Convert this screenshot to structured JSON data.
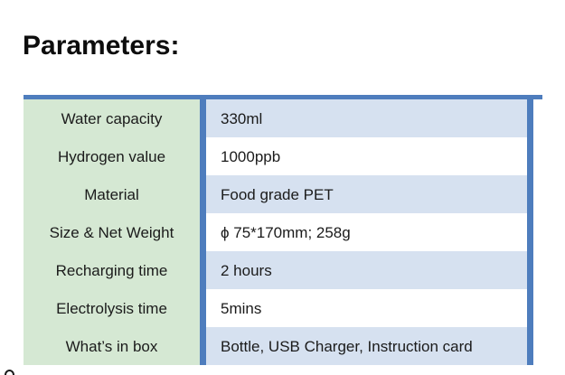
{
  "page": {
    "title": "Parameters:"
  },
  "table": {
    "rows": [
      {
        "label": "Water capacity",
        "value": "330ml"
      },
      {
        "label": "Hydrogen value",
        "value": "1000ppb"
      },
      {
        "label": "Material",
        "value": "Food grade PET"
      },
      {
        "label": "Size & Net Weight",
        "value": "ϕ 75*170mm; 258g"
      },
      {
        "label": "Recharging time",
        "value": "2 hours"
      },
      {
        "label": "Electrolysis time",
        "value": "5mins"
      },
      {
        "label": "What’s in box",
        "value": "Bottle, USB Charger, Instruction card"
      }
    ]
  },
  "colors": {
    "border_blue": "#4e7dbd",
    "label_bg_green": "#d5e8d3",
    "value_bg_blue": "#d6e1f0",
    "value_bg_white": "#ffffff",
    "text": "#1b1b1b"
  }
}
